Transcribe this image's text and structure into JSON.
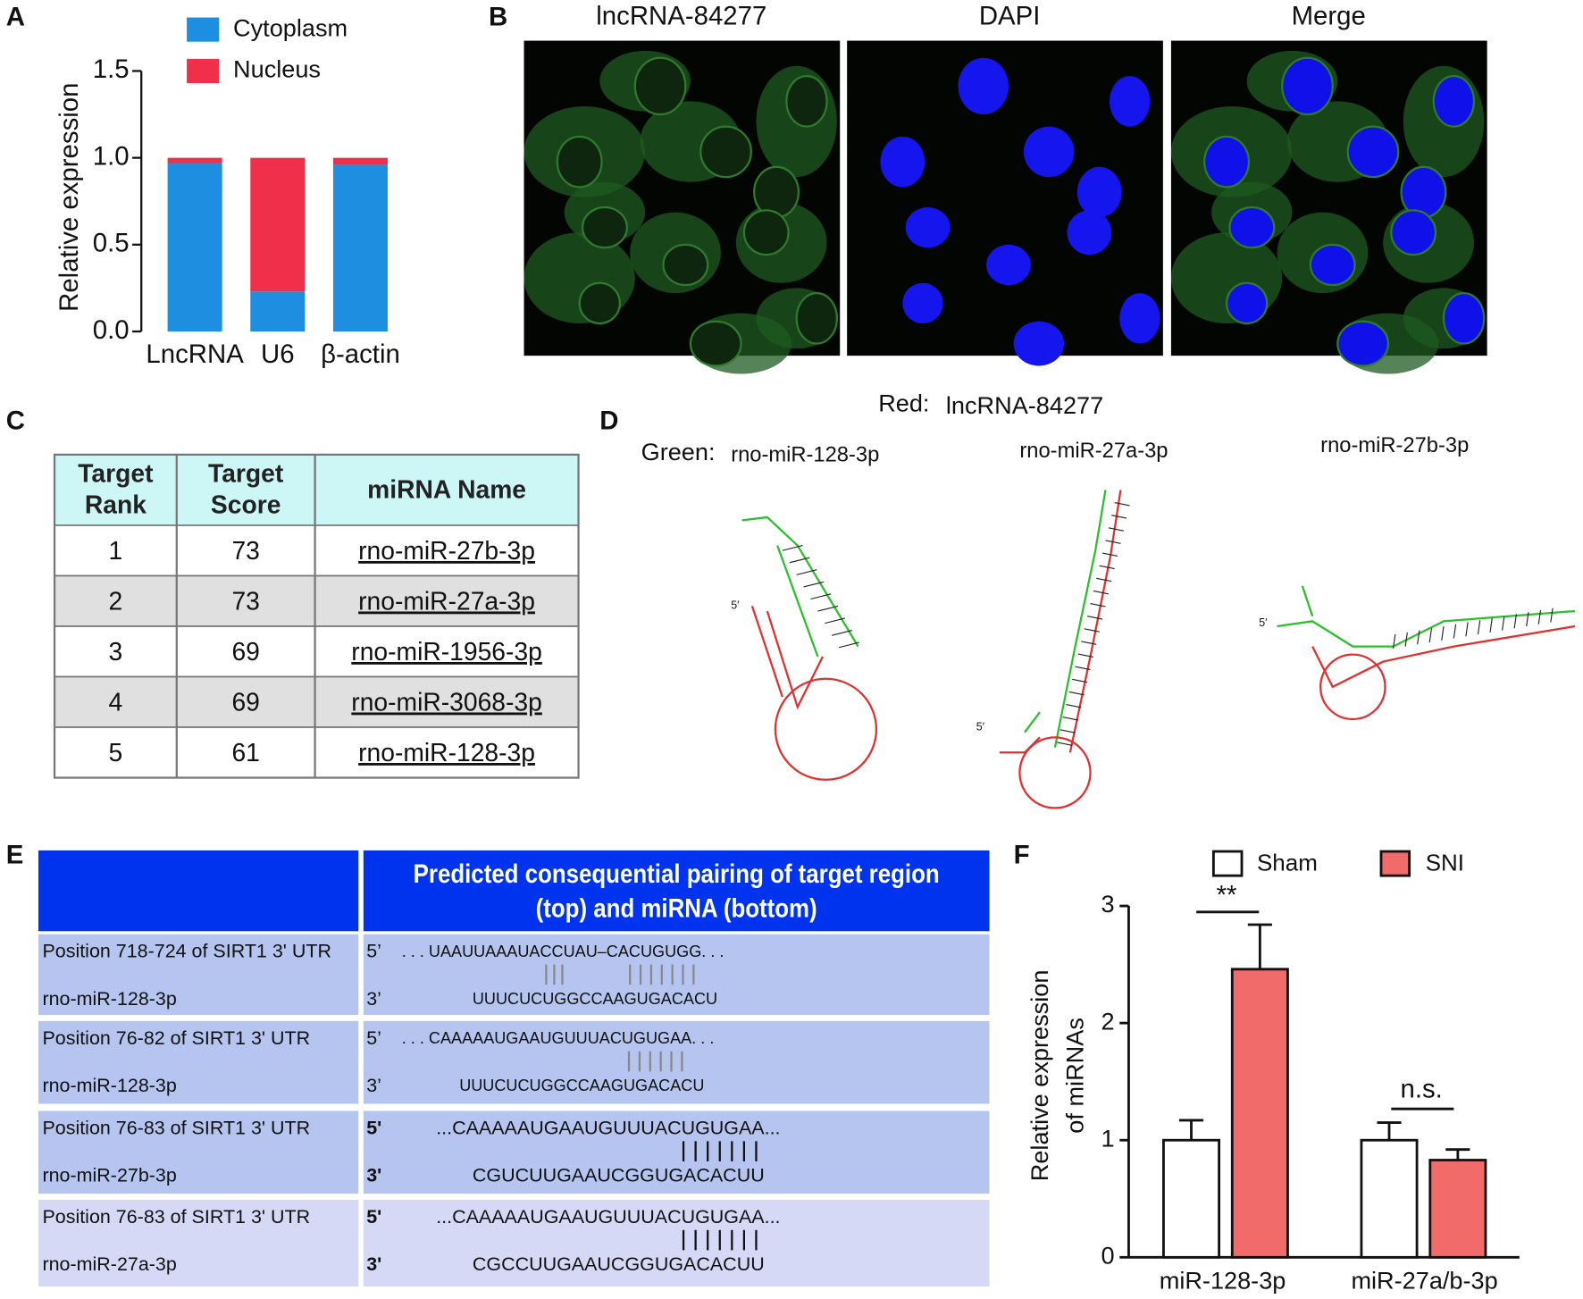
{
  "panel_labels": [
    "A",
    "B",
    "C",
    "D",
    "E",
    "F"
  ],
  "chart_data": [
    {
      "type": "stacked_bar",
      "ylabel": "Relative expression",
      "categories": [
        "LncRNA",
        "U6",
        "β-actin"
      ],
      "series": [
        {
          "name": "Cytoplasm",
          "color": "#1e8fe0",
          "values": [
            0.97,
            0.23,
            0.96
          ]
        },
        {
          "name": "Nucleus",
          "color": "#f0304a",
          "values": [
            0.03,
            0.77,
            0.04
          ]
        }
      ],
      "ylim": [
        0,
        1.5
      ],
      "yticks": [
        {
          "value": 0,
          "label": "0.0"
        },
        0.5,
        {
          "value": 1,
          "label": "1.0"
        },
        1.5
      ]
    },
    {
      "type": "bar",
      "ylabel": "Relative expression of miRNAs",
      "categories": [
        "miR-128-3p",
        "miR-27a/b-3p"
      ],
      "series": [
        {
          "name": "Sham",
          "color": "#ffffff",
          "values": [
            1,
            1
          ],
          "errors": [
            0.17,
            0.15
          ]
        },
        {
          "name": "SNI",
          "color": "#f26b6b",
          "values": [
            2.46,
            0.83
          ],
          "errors": [
            0.38,
            0.09
          ]
        }
      ],
      "ylim": [
        0,
        3
      ],
      "yticks": [
        0,
        1,
        2,
        3
      ],
      "annotations": [
        "**",
        "n.s."
      ]
    }
  ],
  "microscopy": {
    "channels": [
      "lncRNA-84277",
      "DAPI",
      "Merge"
    ]
  },
  "target_table": {
    "columns": [
      "Target Rank",
      "Target Score",
      "miRNA Name"
    ],
    "rows": [
      [
        1,
        73,
        "rno-miR-27b-3p"
      ],
      [
        2,
        73,
        "rno-miR-27a-3p"
      ],
      [
        3,
        69,
        "rno-miR-1956-3p"
      ],
      [
        4,
        69,
        "rno-miR-3068-3p"
      ],
      [
        5,
        61,
        "rno-miR-128-3p"
      ]
    ]
  },
  "structures": {
    "legend": [
      {
        "key": "Red:",
        "value": "lncRNA-84277"
      },
      {
        "key": "Green:",
        "value": "rno-miR-128-3p"
      }
    ],
    "titles": [
      "rno-miR-27a-3p",
      "rno-miR-27b-3p"
    ],
    "end_label": "5′"
  },
  "pairing_table": {
    "header": "Predicted consequential pairing of target region (top) and miRNA (bottom)",
    "rows": [
      {
        "site": "Position 718-724 of SIRT1 3' UTR",
        "mirna": "rno-miR-128-3p",
        "top_end": "5’",
        "top": ". . . UAAUUAAAUACCUAU–CACUGUGG. . .",
        "bottom_end": "3’",
        "bottom": "UUUCUCUGGCCAAGUGACACU"
      },
      {
        "site": "Position 76-82 of SIRT1 3' UTR",
        "mirna": "rno-miR-128-3p",
        "top_end": "5’",
        "top": ". . . CAAAAAUGAAUGUUUACUGUGAA. . .",
        "bottom_end": "3’",
        "bottom": "UUUCUCUGGCCAAGUGACACU"
      },
      {
        "site": "Position 76-83 of SIRT1 3' UTR",
        "mirna": "rno-miR-27b-3p",
        "top_end": "5'",
        "top": "...CAAAAAUGAAUGUUUACUGUGAA...",
        "bottom_end": "3'",
        "bottom": "CGUCUUGAAUCGGUGACACUU"
      },
      {
        "site": "Position 76-83 of SIRT1 3' UTR",
        "mirna": "rno-miR-27a-3p",
        "top_end": "5'",
        "top": "...CAAAAAUGAAUGUUUACUGUGAA...",
        "bottom_end": "3'",
        "bottom": "CGCCUUGAAUCGGUGACACUU"
      }
    ]
  }
}
